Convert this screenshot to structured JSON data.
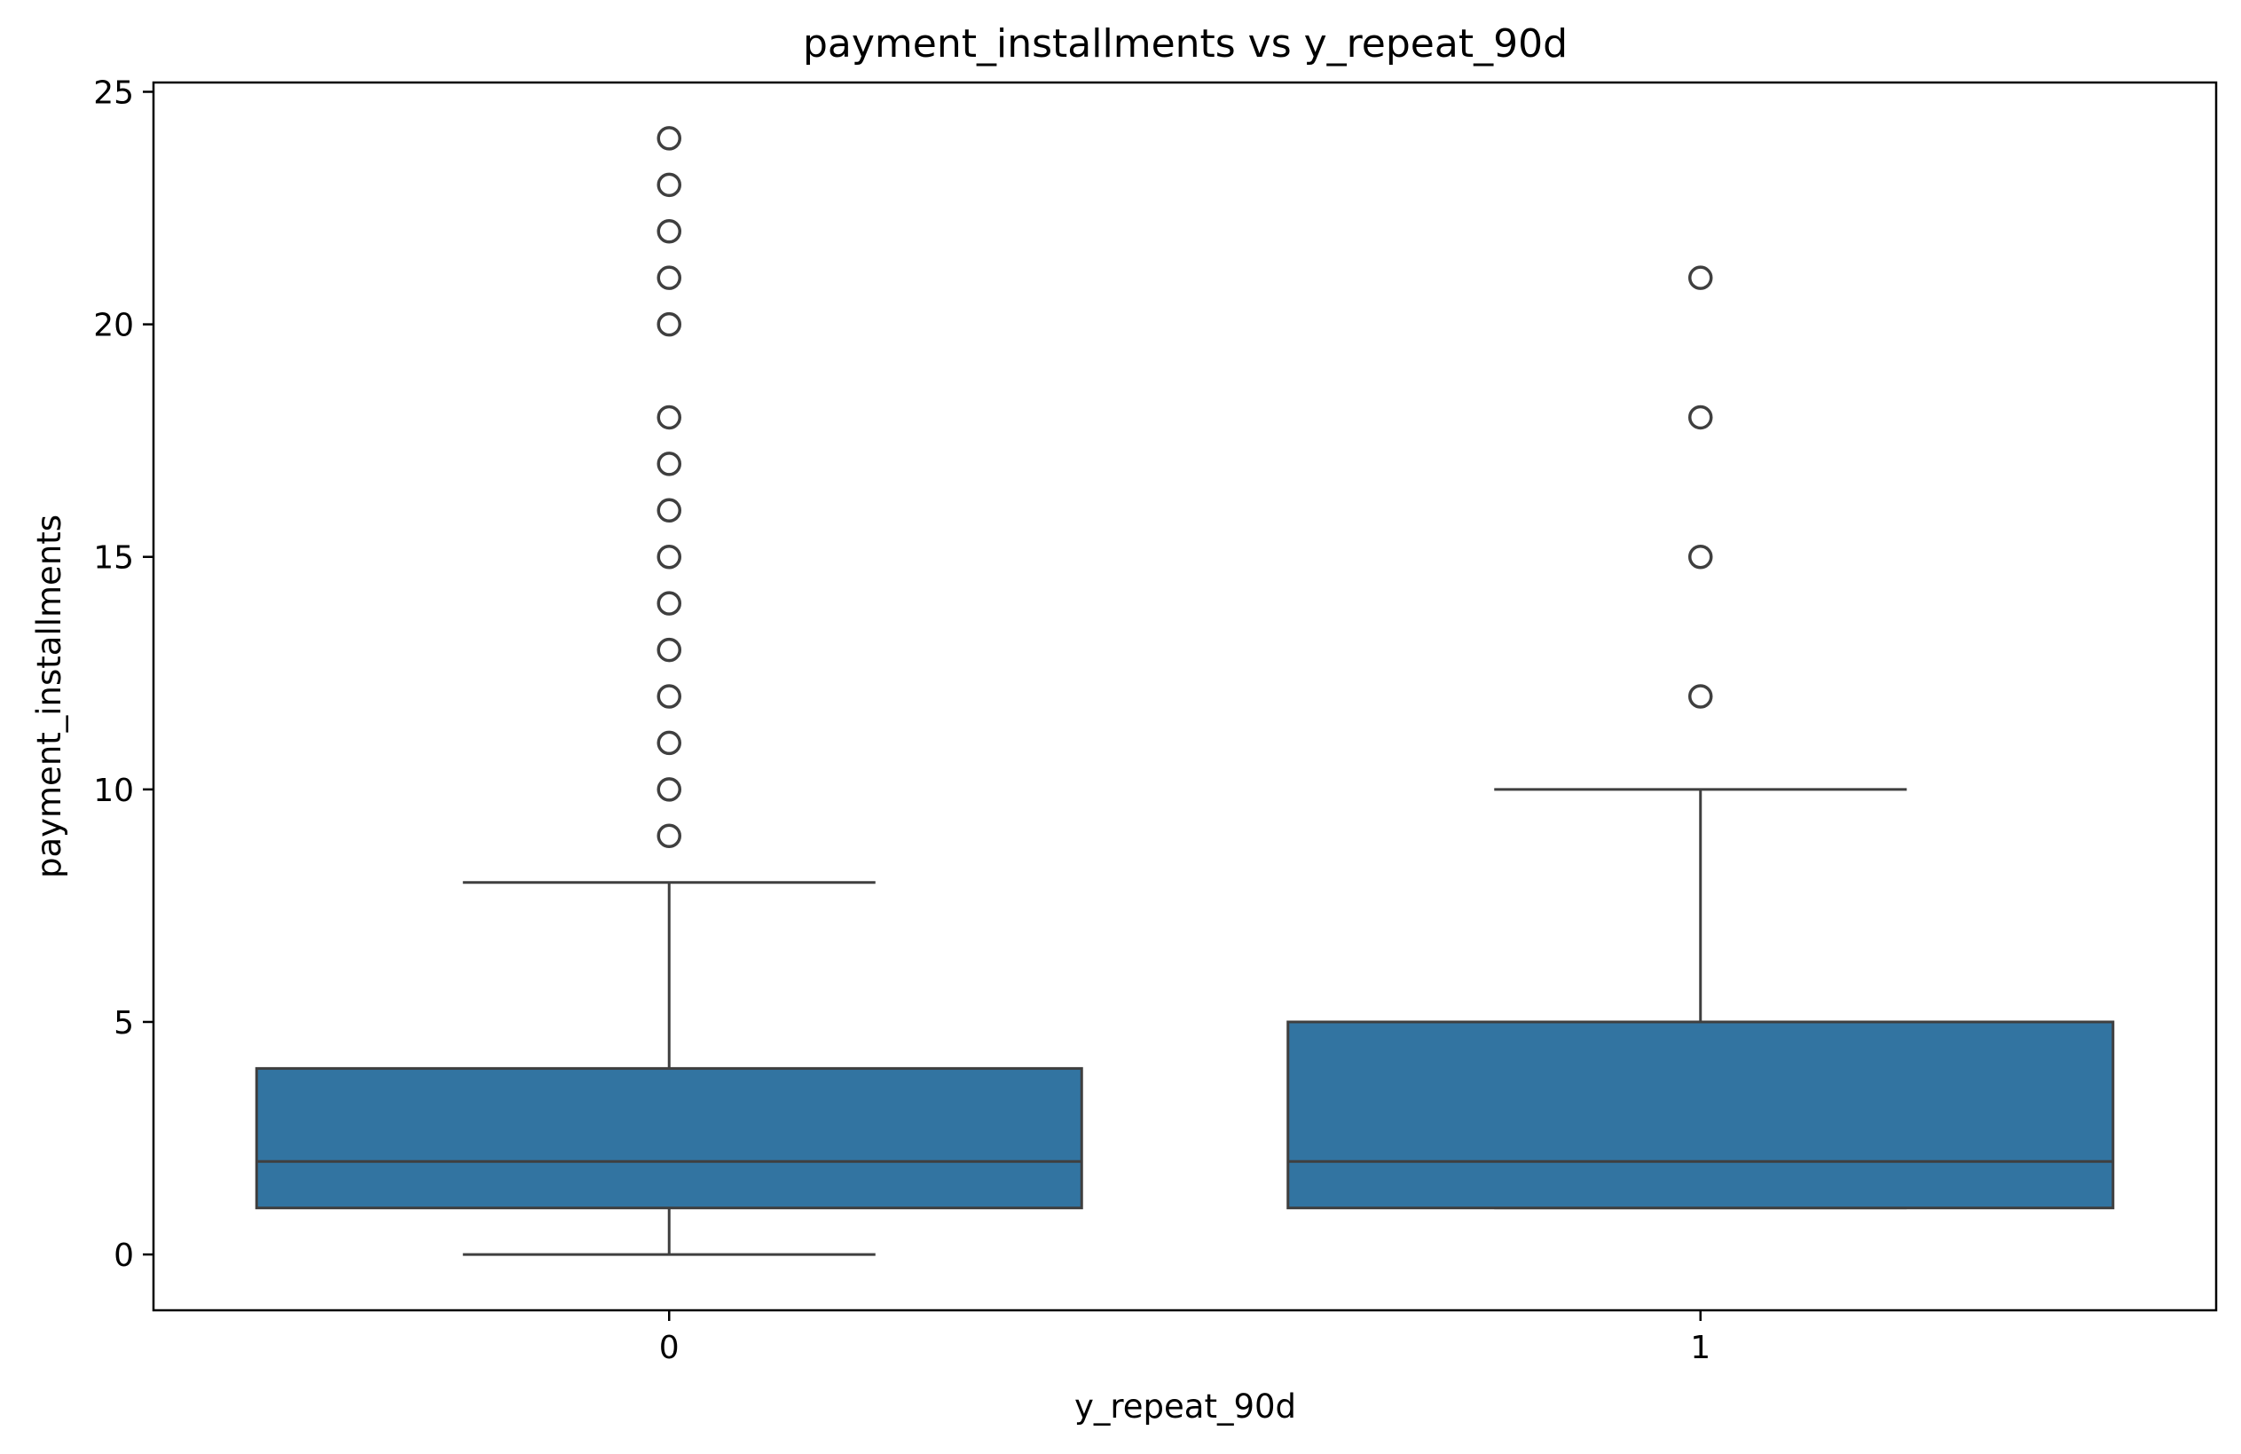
{
  "chart_data": {
    "type": "box",
    "title": "payment_installments vs y_repeat_90d",
    "xlabel": "y_repeat_90d",
    "ylabel": "payment_installments",
    "categories": [
      "0",
      "1"
    ],
    "ylim": [
      -1.2,
      25.2
    ],
    "yticks": [
      0,
      5,
      10,
      15,
      20,
      25
    ],
    "grid": false,
    "box_color": "#3274a1",
    "line_color": "#3f3f3f",
    "boxes": [
      {
        "category": "0",
        "whisker_low": 0,
        "q1": 1,
        "median": 2,
        "q3": 4,
        "whisker_high": 8,
        "outliers": [
          9,
          10,
          11,
          12,
          13,
          14,
          15,
          16,
          17,
          18,
          20,
          21,
          22,
          23,
          24
        ]
      },
      {
        "category": "1",
        "whisker_low": 1,
        "q1": 1,
        "median": 2,
        "q3": 5,
        "whisker_high": 10,
        "outliers": [
          12,
          15,
          18,
          21
        ]
      }
    ]
  }
}
